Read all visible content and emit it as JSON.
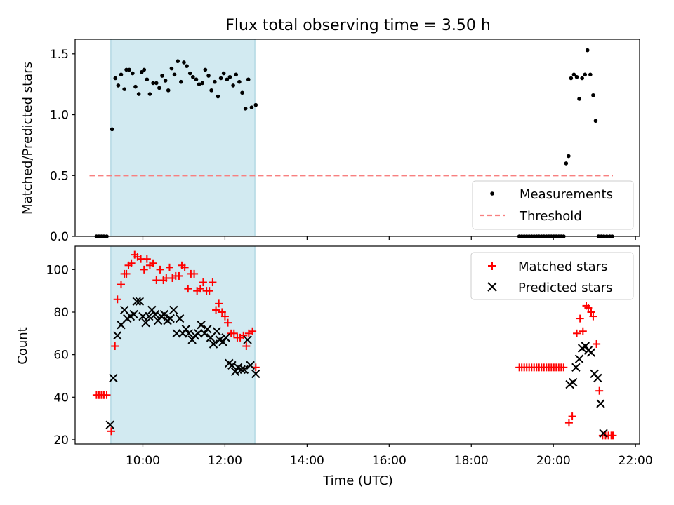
{
  "chart_data": [
    {
      "type": "scatter",
      "panel": "top",
      "title": "Flux total observing time = 3.50 h",
      "xlabel": "",
      "ylabel": "Matched/Predicted stars",
      "xlim": [
        8.35,
        22.1
      ],
      "ylim": [
        0,
        1.62
      ],
      "x_ticks": [
        10,
        12,
        14,
        16,
        18,
        20,
        22
      ],
      "y_ticks": [
        0,
        0.5,
        1.0,
        1.5
      ],
      "y_tick_labels": [
        "0.0",
        "0.5",
        "1.0",
        "1.5"
      ],
      "shaded_region": {
        "x_start": 9.22,
        "x_end": 12.73
      },
      "threshold": {
        "name": "Threshold",
        "y": 0.5,
        "x_start": 8.7,
        "x_end": 21.45,
        "color": "#f88080"
      },
      "legend_location": "lower-right",
      "series": [
        {
          "name": "Measurements",
          "color": "#000000",
          "marker": "dot",
          "x": [
            8.87,
            8.93,
            8.99,
            9.05,
            9.12,
            9.25,
            9.33,
            9.4,
            9.47,
            9.55,
            9.6,
            9.67,
            9.75,
            9.82,
            9.9,
            9.97,
            10.03,
            10.1,
            10.17,
            10.25,
            10.33,
            10.4,
            10.47,
            10.55,
            10.62,
            10.7,
            10.77,
            10.85,
            10.93,
            11.0,
            11.07,
            11.15,
            11.22,
            11.3,
            11.37,
            11.45,
            11.52,
            11.6,
            11.67,
            11.75,
            11.83,
            11.9,
            11.97,
            12.05,
            12.12,
            12.2,
            12.27,
            12.35,
            12.42,
            12.5,
            12.57,
            12.65,
            12.75,
            19.17,
            19.23,
            19.29,
            19.35,
            19.41,
            19.47,
            19.53,
            19.59,
            19.65,
            19.71,
            19.77,
            19.83,
            19.89,
            19.95,
            20.01,
            20.07,
            20.13,
            20.19,
            20.25,
            20.31,
            20.37,
            20.43,
            20.5,
            20.57,
            20.63,
            20.7,
            20.77,
            20.83,
            20.9,
            20.97,
            21.03,
            21.1,
            21.17,
            21.23,
            21.3,
            21.37,
            21.43
          ],
          "y": [
            0.0,
            0.0,
            0.0,
            0.0,
            0.0,
            0.88,
            1.3,
            1.24,
            1.33,
            1.21,
            1.37,
            1.37,
            1.34,
            1.23,
            1.17,
            1.35,
            1.37,
            1.29,
            1.17,
            1.26,
            1.26,
            1.22,
            1.32,
            1.28,
            1.2,
            1.38,
            1.33,
            1.44,
            1.27,
            1.43,
            1.4,
            1.34,
            1.31,
            1.29,
            1.25,
            1.26,
            1.37,
            1.32,
            1.2,
            1.27,
            1.15,
            1.3,
            1.34,
            1.29,
            1.31,
            1.24,
            1.33,
            1.27,
            1.18,
            1.05,
            1.29,
            1.06,
            1.08,
            0.0,
            0.0,
            0.0,
            0.0,
            0.0,
            0.0,
            0.0,
            0.0,
            0.0,
            0.0,
            0.0,
            0.0,
            0.0,
            0.0,
            0.0,
            0.0,
            0.0,
            0.0,
            0.0,
            0.6,
            0.66,
            1.3,
            1.33,
            1.31,
            1.13,
            1.3,
            1.33,
            1.53,
            1.33,
            1.16,
            0.95,
            0.0,
            0.0,
            0.0,
            0.0,
            0.0,
            0.0
          ]
        }
      ]
    },
    {
      "type": "scatter",
      "panel": "bottom",
      "title": "",
      "xlabel": "Time (UTC)",
      "ylabel": "Count",
      "xlim": [
        8.35,
        22.1
      ],
      "ylim": [
        18,
        111
      ],
      "x_ticks": [
        10,
        12,
        14,
        16,
        18,
        20,
        22
      ],
      "x_tick_labels": [
        "10:00",
        "12:00",
        "14:00",
        "16:00",
        "18:00",
        "20:00",
        "22:00"
      ],
      "y_ticks": [
        20,
        40,
        60,
        80,
        100
      ],
      "y_tick_labels": [
        "20",
        "40",
        "60",
        "80",
        "100"
      ],
      "shaded_region": {
        "x_start": 9.22,
        "x_end": 12.73
      },
      "legend_location": "upper-right",
      "series": [
        {
          "name": "Matched stars",
          "color": "#ff0000",
          "marker": "plus",
          "x": [
            8.87,
            8.93,
            8.99,
            9.05,
            9.12,
            9.23,
            9.32,
            9.38,
            9.47,
            9.55,
            9.6,
            9.65,
            9.72,
            9.8,
            9.87,
            9.95,
            10.03,
            10.1,
            10.17,
            10.25,
            10.33,
            10.42,
            10.5,
            10.57,
            10.65,
            10.72,
            10.8,
            10.88,
            10.95,
            11.02,
            11.1,
            11.17,
            11.25,
            11.32,
            11.4,
            11.47,
            11.55,
            11.62,
            11.7,
            11.78,
            11.85,
            11.93,
            12.0,
            12.07,
            12.15,
            12.22,
            12.3,
            12.37,
            12.45,
            12.52,
            12.58,
            12.67,
            12.75,
            19.17,
            19.23,
            19.29,
            19.35,
            19.41,
            19.47,
            19.53,
            19.59,
            19.65,
            19.71,
            19.77,
            19.83,
            19.89,
            19.95,
            20.01,
            20.07,
            20.13,
            20.19,
            20.25,
            20.38,
            20.46,
            20.57,
            20.65,
            20.72,
            20.8,
            20.85,
            20.92,
            20.97,
            21.05,
            21.12,
            21.2,
            21.27,
            21.34,
            21.41,
            21.45
          ],
          "y": [
            41,
            41,
            41,
            41,
            41,
            24,
            64,
            86,
            93,
            98,
            98,
            102,
            103,
            107,
            106,
            105,
            100,
            105,
            102,
            103,
            95,
            100,
            95,
            96,
            101,
            96,
            97,
            97,
            102,
            101,
            91,
            98,
            98,
            90,
            91,
            94,
            90,
            90,
            94,
            81,
            84,
            80,
            78,
            75,
            70,
            70,
            68,
            68,
            69,
            64,
            70,
            71,
            54,
            54,
            54,
            54,
            54,
            54,
            54,
            54,
            54,
            54,
            54,
            54,
            54,
            54,
            54,
            54,
            54,
            54,
            54,
            54,
            28,
            31,
            70,
            77,
            71,
            83,
            82,
            80,
            78,
            65,
            43,
            22,
            22,
            22,
            22,
            22
          ]
        },
        {
          "name": "Predicted stars",
          "color": "#000000",
          "marker": "x",
          "x": [
            9.2,
            9.28,
            9.38,
            9.47,
            9.55,
            9.62,
            9.7,
            9.78,
            9.85,
            9.92,
            10.0,
            10.07,
            10.15,
            10.22,
            10.3,
            10.37,
            10.45,
            10.52,
            10.6,
            10.67,
            10.75,
            10.82,
            10.9,
            10.97,
            11.05,
            11.12,
            11.2,
            11.27,
            11.35,
            11.42,
            11.5,
            11.57,
            11.65,
            11.72,
            11.8,
            11.87,
            11.95,
            12.02,
            12.1,
            12.17,
            12.25,
            12.32,
            12.4,
            12.47,
            12.55,
            12.62,
            12.75,
            20.4,
            20.48,
            20.55,
            20.63,
            20.7,
            20.78,
            20.85,
            20.92,
            21.0,
            21.08,
            21.15,
            21.22
          ],
          "y": [
            27,
            49,
            69,
            74,
            81,
            77,
            78,
            79,
            85,
            85,
            78,
            75,
            78,
            81,
            79,
            76,
            78,
            79,
            76,
            77,
            81,
            70,
            77,
            70,
            72,
            70,
            67,
            69,
            70,
            74,
            70,
            72,
            68,
            65,
            71,
            67,
            66,
            68,
            56,
            55,
            52,
            54,
            53,
            53,
            67,
            55,
            51,
            46,
            47,
            54,
            58,
            63,
            64,
            62,
            61,
            51,
            49,
            37,
            23
          ]
        }
      ]
    }
  ]
}
